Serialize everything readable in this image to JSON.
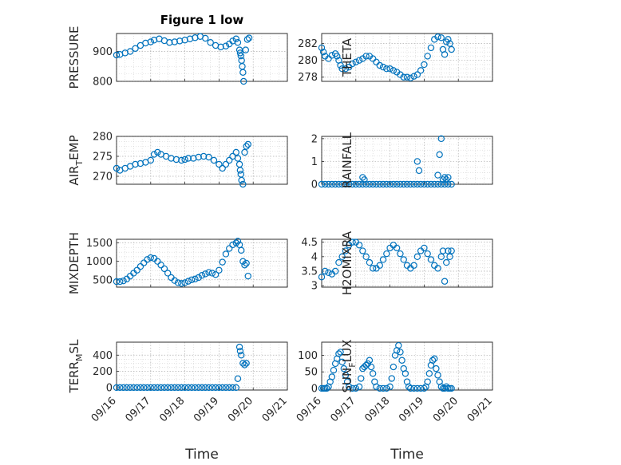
{
  "figure": {
    "title": "Figure 1 low"
  },
  "chart_data": [
    {
      "type": "scatter",
      "ylabel": "PRESSURE",
      "ylim": [
        800,
        960
      ],
      "yticks": [
        800,
        900
      ],
      "xlim": [
        16,
        21
      ],
      "xticks": [
        "09/16",
        "09/17",
        "09/18",
        "09/19",
        "09/20",
        "09/21"
      ],
      "show_xticklabels": false,
      "grid": true,
      "marker_color": "#0072bd",
      "series": [
        {
          "x": [
            16.0,
            16.1,
            16.25,
            16.4,
            16.55,
            16.7,
            16.85,
            17.0,
            17.1,
            17.25,
            17.4,
            17.55,
            17.7,
            17.85,
            18.0,
            18.15,
            18.3,
            18.45,
            18.6,
            18.75,
            18.9,
            19.05,
            19.2,
            19.3,
            19.4,
            19.5,
            19.55,
            19.6,
            19.62,
            19.64,
            19.66,
            19.68,
            19.7,
            19.72,
            19.78,
            19.83,
            19.88
          ],
          "y": [
            888,
            890,
            895,
            900,
            910,
            920,
            928,
            932,
            938,
            942,
            936,
            930,
            932,
            935,
            938,
            942,
            946,
            950,
            944,
            930,
            920,
            915,
            918,
            925,
            935,
            942,
            930,
            905,
            895,
            885,
            870,
            850,
            830,
            800,
            905,
            940,
            945
          ]
        }
      ]
    },
    {
      "type": "scatter",
      "ylabel": "THETA",
      "ylim": [
        277.5,
        283.2
      ],
      "yticks": [
        278,
        280,
        282
      ],
      "xlim": [
        16,
        21
      ],
      "xticks": [
        "09/16",
        "09/17",
        "09/18",
        "09/19",
        "09/20",
        "09/21"
      ],
      "show_xticklabels": false,
      "grid": true,
      "marker_color": "#0072bd",
      "series": [
        {
          "x": [
            16.0,
            16.05,
            16.1,
            16.2,
            16.3,
            16.4,
            16.45,
            16.5,
            16.55,
            16.6,
            16.7,
            16.8,
            16.9,
            17.0,
            17.1,
            17.2,
            17.3,
            17.4,
            17.5,
            17.6,
            17.7,
            17.8,
            17.9,
            18.0,
            18.1,
            18.2,
            18.3,
            18.4,
            18.5,
            18.6,
            18.7,
            18.8,
            18.9,
            19.0,
            19.1,
            19.2,
            19.3,
            19.4,
            19.5,
            19.55,
            19.6,
            19.65,
            19.7,
            19.75,
            19.8
          ],
          "y": [
            281.5,
            281.0,
            280.5,
            280.2,
            280.6,
            280.8,
            280.5,
            280.0,
            279.4,
            279.0,
            279.0,
            279.2,
            279.6,
            279.8,
            280.0,
            280.2,
            280.5,
            280.5,
            280.2,
            279.8,
            279.4,
            279.2,
            279.0,
            279.0,
            278.8,
            278.6,
            278.3,
            278.0,
            278.0,
            277.9,
            278.1,
            278.3,
            278.8,
            279.5,
            280.5,
            281.5,
            282.5,
            282.8,
            282.7,
            281.3,
            280.7,
            282.2,
            282.5,
            282.0,
            281.3
          ]
        }
      ]
    },
    {
      "type": "scatter",
      "ylabel": "AIR_TEMP",
      "ylim": [
        268,
        280
      ],
      "yticks": [
        270,
        275,
        280
      ],
      "xlim": [
        16,
        21
      ],
      "xticks": [
        "09/16",
        "09/17",
        "09/18",
        "09/19",
        "09/20",
        "09/21"
      ],
      "show_xticklabels": false,
      "grid": true,
      "marker_color": "#0072bd",
      "series": [
        {
          "x": [
            16.0,
            16.1,
            16.25,
            16.4,
            16.55,
            16.7,
            16.85,
            17.0,
            17.1,
            17.2,
            17.3,
            17.45,
            17.6,
            17.75,
            17.9,
            18.0,
            18.1,
            18.25,
            18.4,
            18.55,
            18.7,
            18.85,
            19.0,
            19.1,
            19.2,
            19.3,
            19.4,
            19.5,
            19.55,
            19.6,
            19.62,
            19.64,
            19.66,
            19.7,
            19.75,
            19.8,
            19.85
          ],
          "y": [
            272,
            271.5,
            272,
            272.5,
            273,
            273.2,
            273.5,
            274,
            275.5,
            276,
            275.5,
            275,
            274.5,
            274.2,
            274,
            274.2,
            274.5,
            274.5,
            274.8,
            275,
            274.8,
            274,
            273,
            272,
            273,
            274,
            275,
            276,
            274.5,
            273,
            271.5,
            270.5,
            269,
            268,
            276,
            277.5,
            278
          ]
        }
      ]
    },
    {
      "type": "scatter",
      "ylabel": "RAINFALL",
      "ylim": [
        0,
        2.1
      ],
      "yticks": [
        0,
        1,
        2
      ],
      "xlim": [
        16,
        21
      ],
      "xticks": [
        "09/16",
        "09/17",
        "09/18",
        "09/19",
        "09/20",
        "09/21"
      ],
      "show_xticklabels": false,
      "grid": true,
      "marker_color": "#0072bd",
      "series": [
        {
          "x": [
            16.0,
            16.1,
            16.2,
            16.3,
            16.4,
            16.5,
            16.6,
            16.7,
            16.8,
            16.9,
            17.0,
            17.1,
            17.2,
            17.3,
            17.4,
            17.5,
            17.6,
            17.7,
            17.8,
            17.9,
            18.0,
            18.1,
            18.2,
            18.3,
            18.4,
            18.5,
            18.6,
            18.7,
            18.8,
            18.9,
            19.0,
            19.1,
            19.2,
            19.3,
            19.4,
            19.5,
            19.6,
            19.7,
            19.8,
            17.2,
            17.25,
            18.8,
            18.85,
            19.4,
            19.45,
            19.5,
            19.55,
            19.6,
            19.65,
            19.7
          ],
          "y": [
            0,
            0,
            0,
            0,
            0,
            0,
            0,
            0,
            0,
            0,
            0,
            0,
            0,
            0,
            0,
            0,
            0,
            0,
            0,
            0,
            0,
            0,
            0,
            0,
            0,
            0,
            0,
            0,
            0,
            0,
            0,
            0,
            0,
            0,
            0,
            0,
            0,
            0,
            0,
            0.3,
            0.2,
            1.0,
            0.6,
            0.4,
            1.3,
            2.0,
            0.2,
            0.3,
            0.2,
            0.3
          ]
        }
      ]
    },
    {
      "type": "scatter",
      "ylabel": "MIXDEPTH",
      "ylim": [
        300,
        1600
      ],
      "yticks": [
        500,
        1000,
        1500
      ],
      "xlim": [
        16,
        21
      ],
      "xticks": [
        "09/16",
        "09/17",
        "09/18",
        "09/19",
        "09/20",
        "09/21"
      ],
      "show_xticklabels": false,
      "grid": true,
      "marker_color": "#0072bd",
      "series": [
        {
          "x": [
            16.0,
            16.1,
            16.2,
            16.3,
            16.4,
            16.5,
            16.6,
            16.7,
            16.8,
            16.9,
            17.0,
            17.1,
            17.2,
            17.3,
            17.4,
            17.5,
            17.6,
            17.7,
            17.8,
            17.9,
            18.0,
            18.1,
            18.2,
            18.3,
            18.4,
            18.5,
            18.6,
            18.7,
            18.8,
            18.9,
            19.0,
            19.1,
            19.2,
            19.3,
            19.4,
            19.5,
            19.55,
            19.6,
            19.65,
            19.7,
            19.75,
            19.8,
            19.85
          ],
          "y": [
            450,
            450,
            470,
            520,
            600,
            680,
            760,
            860,
            960,
            1050,
            1100,
            1080,
            1000,
            900,
            800,
            680,
            560,
            480,
            420,
            400,
            420,
            460,
            500,
            520,
            560,
            620,
            660,
            700,
            680,
            640,
            760,
            980,
            1200,
            1350,
            1450,
            1500,
            1550,
            1450,
            1300,
            1000,
            900,
            950,
            600
          ]
        }
      ]
    },
    {
      "type": "scatter",
      "ylabel": "H2OMIXRA",
      "ylim": [
        2.95,
        4.6
      ],
      "yticks": [
        3,
        3.5,
        4,
        4.5
      ],
      "xlim": [
        16,
        21
      ],
      "xticks": [
        "09/16",
        "09/17",
        "09/18",
        "09/19",
        "09/20",
        "09/21"
      ],
      "show_xticklabels": false,
      "grid": true,
      "marker_color": "#0072bd",
      "series": [
        {
          "x": [
            16.0,
            16.1,
            16.2,
            16.3,
            16.4,
            16.5,
            16.6,
            16.7,
            16.8,
            16.9,
            17.0,
            17.1,
            17.2,
            17.3,
            17.4,
            17.5,
            17.6,
            17.7,
            17.8,
            17.9,
            18.0,
            18.1,
            18.2,
            18.3,
            18.4,
            18.5,
            18.6,
            18.7,
            18.8,
            18.9,
            19.0,
            19.1,
            19.2,
            19.3,
            19.4,
            19.5,
            19.55,
            19.6,
            19.65,
            19.7,
            19.75,
            19.8
          ],
          "y": [
            3.3,
            3.5,
            3.45,
            3.4,
            3.5,
            3.8,
            4.0,
            4.2,
            4.4,
            4.5,
            4.5,
            4.4,
            4.2,
            4.0,
            3.8,
            3.6,
            3.6,
            3.7,
            3.9,
            4.1,
            4.3,
            4.4,
            4.3,
            4.1,
            3.9,
            3.7,
            3.6,
            3.7,
            4.0,
            4.2,
            4.3,
            4.1,
            3.9,
            3.7,
            3.6,
            4.0,
            4.2,
            3.15,
            3.8,
            4.2,
            4.0,
            4.2
          ]
        }
      ]
    },
    {
      "type": "scatter",
      "ylabel": "TERR_MSL",
      "ylim": [
        -30,
        560
      ],
      "yticks": [
        0,
        200,
        400
      ],
      "xlim": [
        16,
        21
      ],
      "xticks": [
        "09/16",
        "09/17",
        "09/18",
        "09/19",
        "09/20",
        "09/21"
      ],
      "show_xticklabels": true,
      "xlabel": "Time",
      "grid": true,
      "marker_color": "#0072bd",
      "series": [
        {
          "x": [
            16.0,
            16.1,
            16.2,
            16.3,
            16.4,
            16.5,
            16.6,
            16.7,
            16.8,
            16.9,
            17.0,
            17.1,
            17.2,
            17.3,
            17.4,
            17.5,
            17.6,
            17.7,
            17.8,
            17.9,
            18.0,
            18.1,
            18.2,
            18.3,
            18.4,
            18.5,
            18.6,
            18.7,
            18.8,
            18.9,
            19.0,
            19.1,
            19.2,
            19.3,
            19.4,
            19.5,
            19.55,
            19.6,
            19.62,
            19.65,
            19.7,
            19.75,
            19.8
          ],
          "y": [
            0,
            0,
            0,
            0,
            0,
            0,
            0,
            0,
            0,
            0,
            0,
            0,
            0,
            0,
            0,
            0,
            0,
            0,
            0,
            0,
            0,
            0,
            0,
            0,
            0,
            0,
            0,
            0,
            0,
            0,
            0,
            0,
            0,
            0,
            0,
            0,
            110,
            500,
            450,
            400,
            300,
            280,
            300
          ]
        }
      ]
    },
    {
      "type": "scatter",
      "ylabel": "SUN_FLUX",
      "ylim": [
        -5,
        140
      ],
      "yticks": [
        0,
        50,
        100
      ],
      "xlim": [
        16,
        21
      ],
      "xticks": [
        "09/16",
        "09/17",
        "09/18",
        "09/19",
        "09/20",
        "09/21"
      ],
      "show_xticklabels": true,
      "xlabel": "Time",
      "grid": true,
      "marker_color": "#0072bd",
      "series": [
        {
          "x": [
            16.0,
            16.05,
            16.1,
            16.15,
            16.2,
            16.25,
            16.3,
            16.35,
            16.4,
            16.45,
            16.5,
            16.55,
            16.6,
            16.65,
            16.7,
            16.75,
            16.8,
            16.9,
            17.0,
            17.1,
            17.15,
            17.2,
            17.25,
            17.3,
            17.35,
            17.4,
            17.45,
            17.5,
            17.55,
            17.6,
            17.7,
            17.8,
            17.9,
            18.0,
            18.05,
            18.1,
            18.15,
            18.2,
            18.25,
            18.3,
            18.35,
            18.4,
            18.45,
            18.5,
            18.55,
            18.6,
            18.7,
            18.8,
            18.9,
            19.0,
            19.05,
            19.1,
            19.15,
            19.2,
            19.25,
            19.3,
            19.35,
            19.4,
            19.45,
            19.5,
            19.55,
            19.6,
            19.65,
            19.7,
            19.75,
            19.8
          ],
          "y": [
            0,
            0,
            0,
            0,
            5,
            20,
            35,
            55,
            75,
            90,
            105,
            110,
            80,
            60,
            40,
            20,
            5,
            0,
            0,
            5,
            30,
            60,
            65,
            70,
            75,
            85,
            65,
            45,
            20,
            5,
            0,
            0,
            0,
            5,
            30,
            65,
            100,
            115,
            130,
            110,
            85,
            60,
            45,
            20,
            5,
            0,
            0,
            0,
            0,
            0,
            5,
            20,
            45,
            70,
            85,
            90,
            60,
            40,
            20,
            5,
            0,
            0,
            5,
            0,
            0,
            0
          ]
        }
      ]
    }
  ]
}
